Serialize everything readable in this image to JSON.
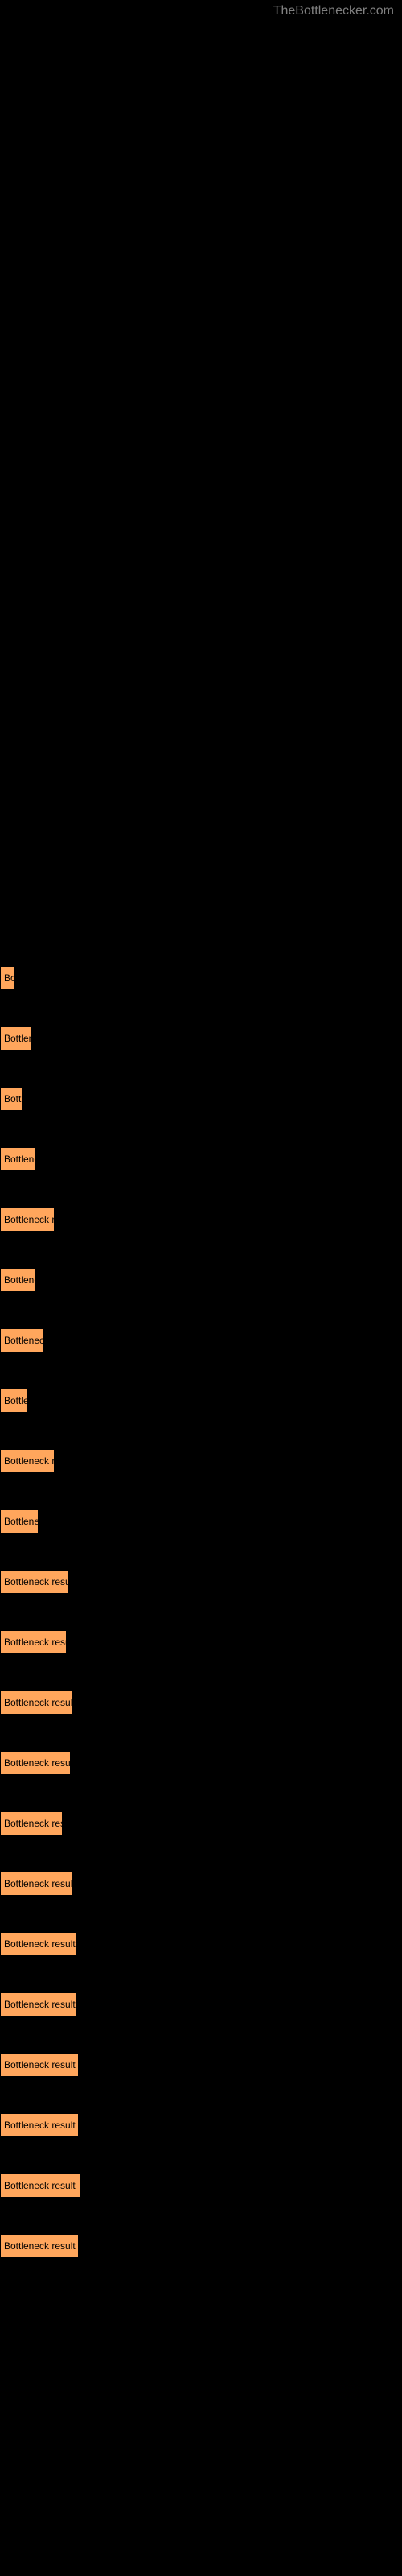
{
  "watermark": "TheBottlenecker.com",
  "chart": {
    "type": "bar",
    "bar_color": "#ffa65c",
    "bar_border_color": "#000000",
    "background_color": "#000000",
    "text_color": "#000000",
    "font_size": 12,
    "bars": [
      {
        "label": "Bo",
        "width": 18
      },
      {
        "label": "Bottlene",
        "width": 40
      },
      {
        "label": "Bott",
        "width": 28
      },
      {
        "label": "Bottlenec",
        "width": 45
      },
      {
        "label": "Bottleneck re",
        "width": 68
      },
      {
        "label": "Bottlenec",
        "width": 45
      },
      {
        "label": "Bottleneck",
        "width": 55
      },
      {
        "label": "Bottler",
        "width": 35
      },
      {
        "label": "Bottleneck re",
        "width": 68
      },
      {
        "label": "Bottlenec",
        "width": 48
      },
      {
        "label": "Bottleneck result",
        "width": 85
      },
      {
        "label": "Bottleneck result",
        "width": 83
      },
      {
        "label": "Bottleneck result",
        "width": 90
      },
      {
        "label": "Bottleneck result",
        "width": 88
      },
      {
        "label": "Bottleneck resu",
        "width": 78
      },
      {
        "label": "Bottleneck result",
        "width": 90
      },
      {
        "label": "Bottleneck result",
        "width": 95
      },
      {
        "label": "Bottleneck result",
        "width": 95
      },
      {
        "label": "Bottleneck result",
        "width": 98
      },
      {
        "label": "Bottleneck result",
        "width": 98
      },
      {
        "label": "Bottleneck result",
        "width": 100
      },
      {
        "label": "Bottleneck result",
        "width": 98
      }
    ]
  }
}
